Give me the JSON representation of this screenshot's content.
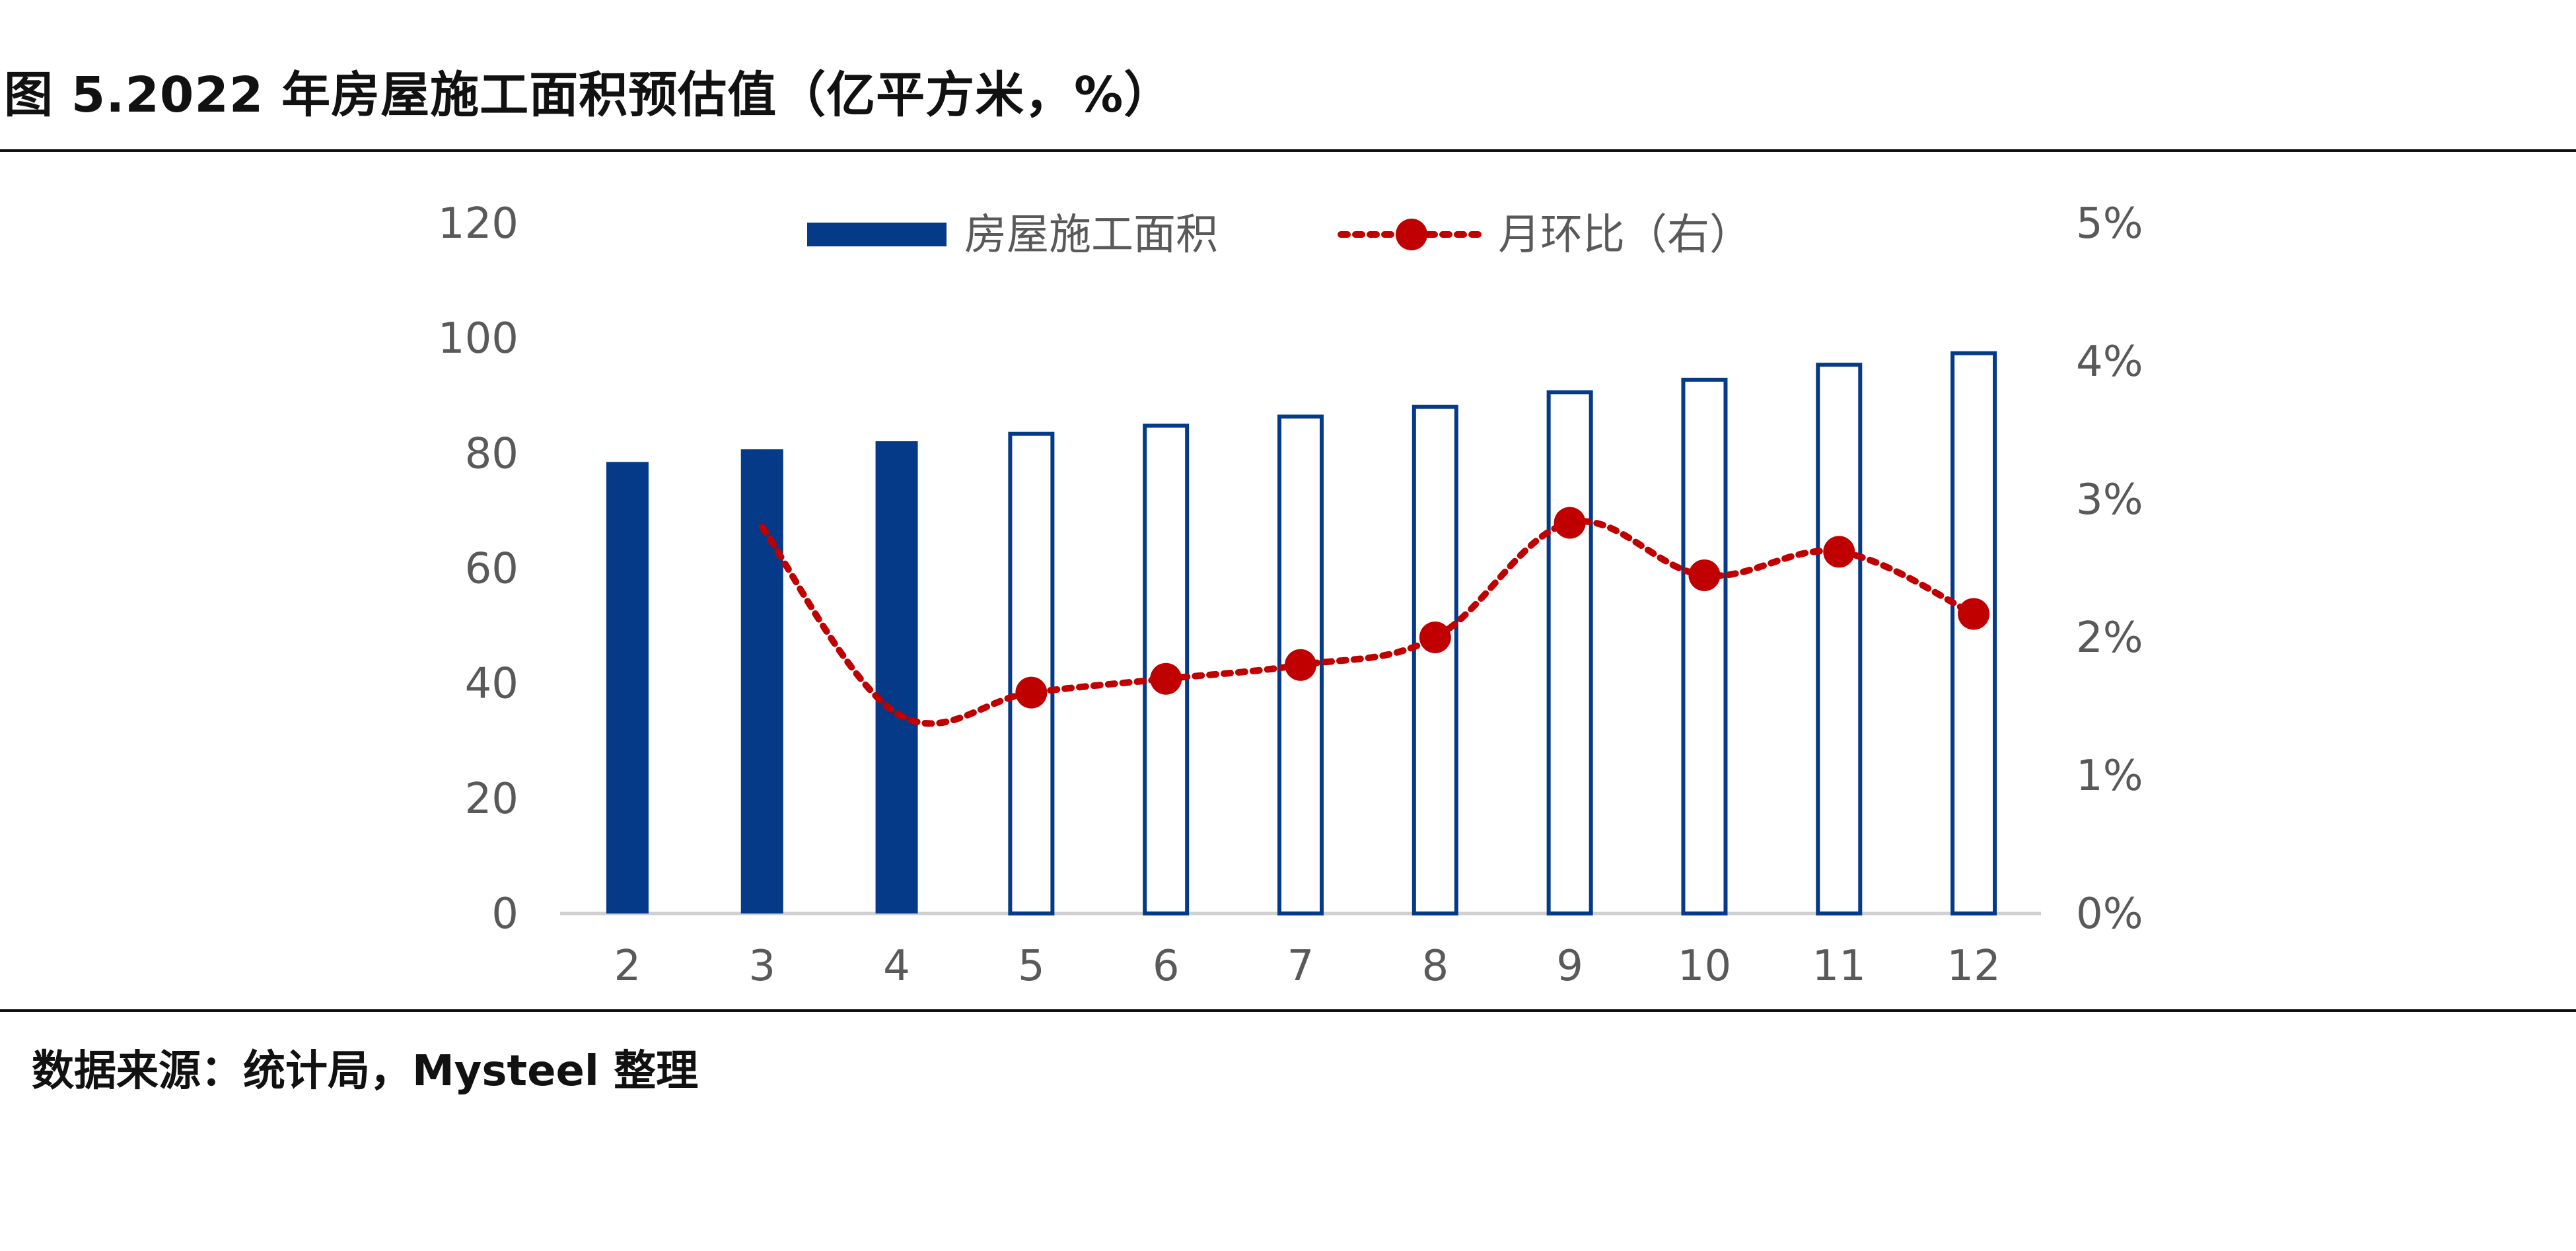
{
  "figure": {
    "title": "图 5.2022 年房屋施工面积预估值（亿平方米，%）",
    "source": "数据来源：统计局，Mysteel 整理"
  },
  "colors": {
    "bar_fill": "#043a87",
    "bar_outline": "#043a87",
    "line": "#c00000",
    "axis": "#d0d0d0",
    "tick_text": "#595959"
  },
  "chart_data": {
    "type": "bar",
    "title": "",
    "categories": [
      "2",
      "3",
      "4",
      "5",
      "6",
      "7",
      "8",
      "9",
      "10",
      "11",
      "12"
    ],
    "series": [
      {
        "name": "房屋施工面积",
        "type": "bar",
        "axis": "left",
        "values": [
          78.5,
          80.7,
          82.1,
          83.4,
          84.8,
          86.4,
          88.1,
          90.6,
          92.8,
          95.4,
          97.4
        ],
        "style_by_point": [
          "filled",
          "filled",
          "filled",
          "outline",
          "outline",
          "outline",
          "outline",
          "outline",
          "outline",
          "outline",
          "outline"
        ]
      },
      {
        "name": "月环比（右）",
        "type": "line",
        "axis": "right",
        "line_style": "dotted",
        "values": [
          null,
          2.8,
          1.45,
          1.6,
          1.7,
          1.8,
          2.0,
          2.83,
          2.45,
          2.62,
          2.17
        ],
        "markers": [
          false,
          false,
          false,
          true,
          true,
          true,
          true,
          true,
          true,
          true,
          true
        ]
      }
    ],
    "y_left": {
      "min": 0,
      "max": 120,
      "ticks": [
        0,
        20,
        40,
        60,
        80,
        100,
        120
      ]
    },
    "y_right": {
      "min": 0,
      "max": 5,
      "ticks": [
        "0%",
        "1%",
        "2%",
        "3%",
        "4%",
        "5%"
      ]
    },
    "grid": false,
    "legend": {
      "placement": "top-center"
    }
  }
}
